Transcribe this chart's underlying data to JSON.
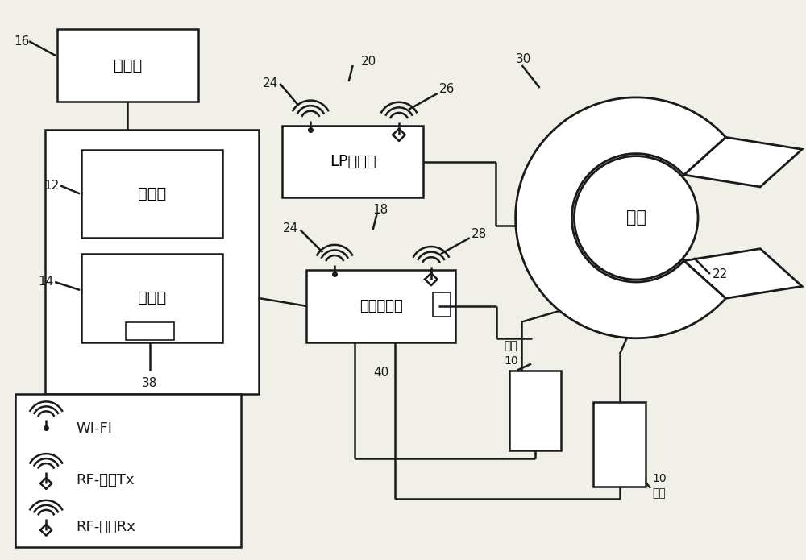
{
  "bg_color": "#f0efe8",
  "line_color": "#1a1a1a",
  "box_fill": "#ffffff",
  "text_color": "#000000",
  "fig_w": 10.0,
  "fig_h": 6.95,
  "dpi": 100,
  "legend_items": [
    "WI-FI",
    "RF-同步Tx",
    "RF-同步Rx"
  ]
}
